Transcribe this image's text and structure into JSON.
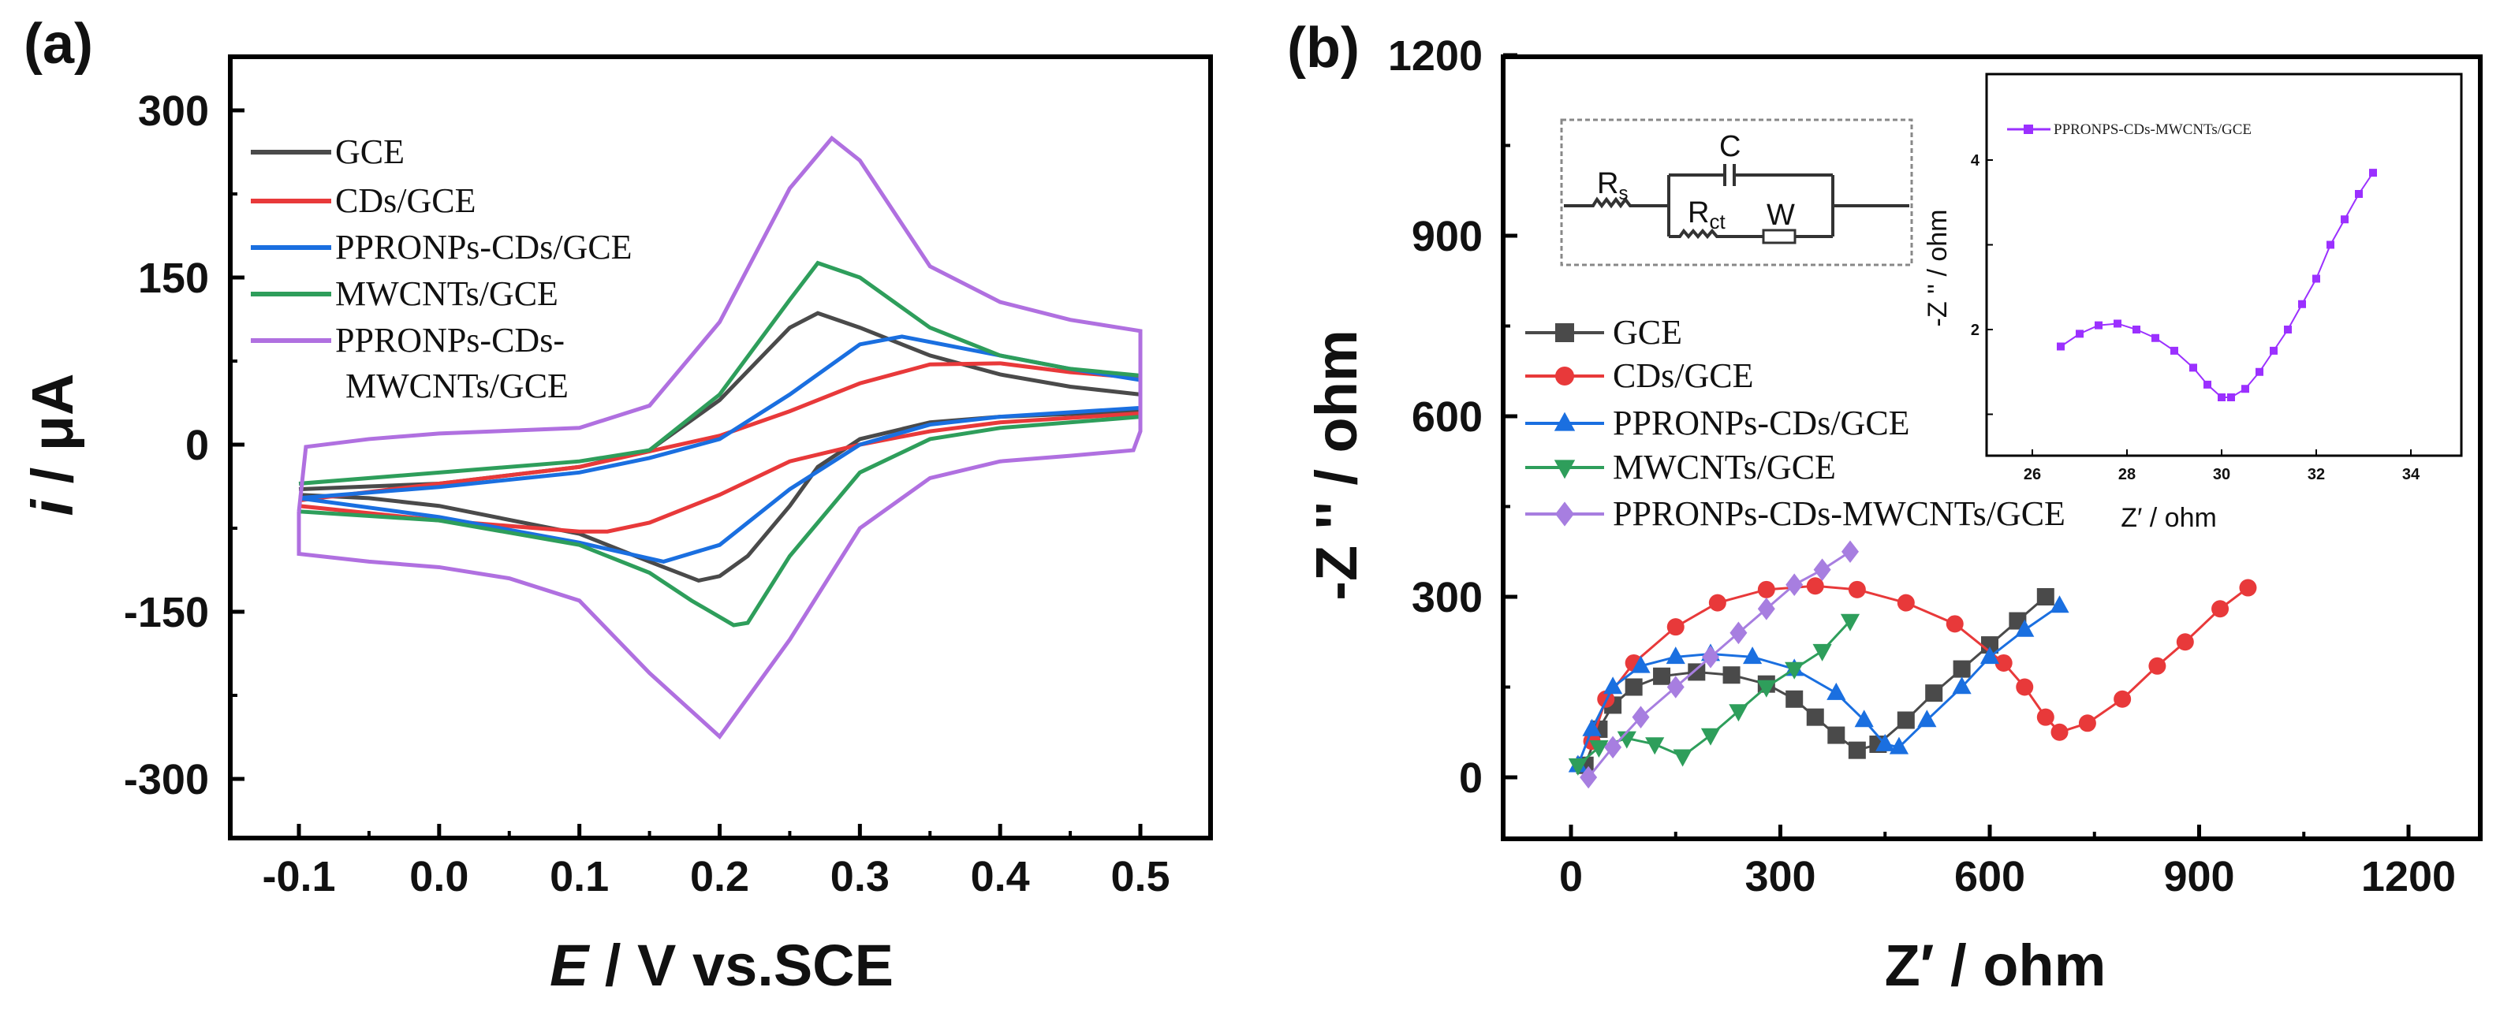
{
  "chart_data": [
    {
      "type": "line",
      "panel_label": "(a)",
      "title": "",
      "xlabel_var": "E",
      "xlabel_rest": " / V vs.SCE",
      "ylabel_var": "i",
      "ylabel_rest": " / μA",
      "xlim": [
        -0.15,
        0.55
      ],
      "ylim": [
        -350,
        350
      ],
      "xticks": [
        "-0.1",
        "0.0",
        "0.1",
        "0.2",
        "0.3",
        "0.4",
        "0.5"
      ],
      "xtick_values": [
        -0.1,
        0.0,
        0.1,
        0.2,
        0.3,
        0.4,
        0.5
      ],
      "yticks": [
        "300",
        "150",
        "0",
        "-150",
        "-300"
      ],
      "ytick_values": [
        300,
        150,
        0,
        -150,
        -300
      ],
      "legend_position": "top-left",
      "series": [
        {
          "name": "GCE",
          "color": "#4a4a4a",
          "points": [
            [
              -0.1,
              -40
            ],
            [
              0.0,
              -35
            ],
            [
              0.1,
              -20
            ],
            [
              0.15,
              -5
            ],
            [
              0.2,
              40
            ],
            [
              0.25,
              105
            ],
            [
              0.27,
              118
            ],
            [
              0.3,
              105
            ],
            [
              0.35,
              80
            ],
            [
              0.4,
              63
            ],
            [
              0.45,
              52
            ],
            [
              0.5,
              45
            ],
            [
              0.5,
              30
            ],
            [
              0.4,
              25
            ],
            [
              0.35,
              20
            ],
            [
              0.3,
              5
            ],
            [
              0.27,
              -20
            ],
            [
              0.25,
              -55
            ],
            [
              0.22,
              -100
            ],
            [
              0.2,
              -118
            ],
            [
              0.185,
              -122
            ],
            [
              0.15,
              -105
            ],
            [
              0.1,
              -80
            ],
            [
              0.0,
              -55
            ],
            [
              -0.05,
              -48
            ],
            [
              -0.1,
              -45
            ]
          ]
        },
        {
          "name": "CDs/GCE",
          "color": "#e8393a",
          "points": [
            [
              -0.1,
              -50
            ],
            [
              0.0,
              -35
            ],
            [
              0.1,
              -20
            ],
            [
              0.2,
              8
            ],
            [
              0.25,
              30
            ],
            [
              0.3,
              55
            ],
            [
              0.35,
              72
            ],
            [
              0.4,
              73
            ],
            [
              0.45,
              65
            ],
            [
              0.5,
              60
            ],
            [
              0.5,
              28
            ],
            [
              0.4,
              20
            ],
            [
              0.35,
              12
            ],
            [
              0.3,
              0
            ],
            [
              0.25,
              -15
            ],
            [
              0.2,
              -45
            ],
            [
              0.15,
              -70
            ],
            [
              0.12,
              -78
            ],
            [
              0.1,
              -78
            ],
            [
              0.0,
              -68
            ],
            [
              -0.1,
              -55
            ]
          ]
        },
        {
          "name": "PPRONPs-CDs/GCE",
          "color": "#1a6fe0",
          "points": [
            [
              -0.1,
              -48
            ],
            [
              0.0,
              -38
            ],
            [
              0.1,
              -25
            ],
            [
              0.15,
              -12
            ],
            [
              0.2,
              5
            ],
            [
              0.25,
              45
            ],
            [
              0.3,
              90
            ],
            [
              0.33,
              97
            ],
            [
              0.4,
              80
            ],
            [
              0.45,
              68
            ],
            [
              0.5,
              58
            ],
            [
              0.5,
              33
            ],
            [
              0.4,
              25
            ],
            [
              0.35,
              18
            ],
            [
              0.3,
              0
            ],
            [
              0.25,
              -40
            ],
            [
              0.2,
              -90
            ],
            [
              0.16,
              -105
            ],
            [
              0.1,
              -88
            ],
            [
              0.0,
              -65
            ],
            [
              -0.1,
              -48
            ]
          ]
        },
        {
          "name": "MWCNTs/GCE",
          "color": "#2e9e5b",
          "points": [
            [
              -0.1,
              -35
            ],
            [
              0.0,
              -25
            ],
            [
              0.1,
              -15
            ],
            [
              0.15,
              -5
            ],
            [
              0.2,
              45
            ],
            [
              0.25,
              130
            ],
            [
              0.27,
              163
            ],
            [
              0.3,
              150
            ],
            [
              0.35,
              105
            ],
            [
              0.4,
              80
            ],
            [
              0.45,
              68
            ],
            [
              0.5,
              62
            ],
            [
              0.5,
              25
            ],
            [
              0.4,
              15
            ],
            [
              0.35,
              5
            ],
            [
              0.3,
              -25
            ],
            [
              0.25,
              -100
            ],
            [
              0.22,
              -160
            ],
            [
              0.21,
              -162
            ],
            [
              0.18,
              -140
            ],
            [
              0.15,
              -115
            ],
            [
              0.1,
              -90
            ],
            [
              0.0,
              -68
            ],
            [
              -0.1,
              -60
            ]
          ]
        },
        {
          "name": "PPRONPs-CDs-",
          "name_line2": "MWCNTs/GCE",
          "color": "#b070e0",
          "points": [
            [
              -0.1,
              -60
            ],
            [
              -0.095,
              -2
            ],
            [
              -0.05,
              5
            ],
            [
              0.0,
              10
            ],
            [
              0.1,
              15
            ],
            [
              0.15,
              35
            ],
            [
              0.2,
              110
            ],
            [
              0.25,
              230
            ],
            [
              0.28,
              275
            ],
            [
              0.3,
              255
            ],
            [
              0.35,
              160
            ],
            [
              0.4,
              128
            ],
            [
              0.45,
              112
            ],
            [
              0.5,
              102
            ],
            [
              0.5,
              12
            ],
            [
              0.495,
              -5
            ],
            [
              0.45,
              -10
            ],
            [
              0.4,
              -15
            ],
            [
              0.35,
              -30
            ],
            [
              0.3,
              -75
            ],
            [
              0.25,
              -175
            ],
            [
              0.2,
              -262
            ],
            [
              0.15,
              -205
            ],
            [
              0.1,
              -140
            ],
            [
              0.05,
              -120
            ],
            [
              0.0,
              -110
            ],
            [
              -0.05,
              -105
            ],
            [
              -0.1,
              -98
            ],
            [
              -0.1,
              -60
            ]
          ]
        }
      ]
    },
    {
      "type": "scatter",
      "panel_label": "(b)",
      "xlabel": "Z′ / ohm",
      "ylabel": "-Z '' / ohm",
      "xlim": [
        -100,
        1300
      ],
      "ylim": [
        -100,
        1200
      ],
      "xticks": [
        "0",
        "300",
        "600",
        "900",
        "1200"
      ],
      "xtick_values": [
        0,
        300,
        600,
        900,
        1200
      ],
      "yticks": [
        "0",
        "300",
        "600",
        "900",
        "1200"
      ],
      "ytick_values": [
        0,
        300,
        600,
        900,
        1200
      ],
      "legend_position": "center-left",
      "series": [
        {
          "name": "GCE",
          "color": "#4a4a4a",
          "marker": "square",
          "points": [
            [
              20,
              20
            ],
            [
              40,
              80
            ],
            [
              60,
              120
            ],
            [
              90,
              150
            ],
            [
              130,
              168
            ],
            [
              180,
              175
            ],
            [
              230,
              170
            ],
            [
              280,
              155
            ],
            [
              320,
              130
            ],
            [
              350,
              100
            ],
            [
              380,
              70
            ],
            [
              410,
              45
            ],
            [
              440,
              55
            ],
            [
              480,
              95
            ],
            [
              520,
              140
            ],
            [
              560,
              180
            ],
            [
              600,
              220
            ],
            [
              640,
              260
            ],
            [
              680,
              300
            ]
          ]
        },
        {
          "name": "CDs/GCE",
          "color": "#e8393a",
          "marker": "circle",
          "points": [
            [
              30,
              60
            ],
            [
              50,
              130
            ],
            [
              90,
              190
            ],
            [
              150,
              250
            ],
            [
              210,
              290
            ],
            [
              280,
              312
            ],
            [
              350,
              318
            ],
            [
              410,
              312
            ],
            [
              480,
              290
            ],
            [
              550,
              255
            ],
            [
              620,
              190
            ],
            [
              650,
              150
            ],
            [
              680,
              100
            ],
            [
              700,
              75
            ],
            [
              740,
              90
            ],
            [
              790,
              130
            ],
            [
              840,
              185
            ],
            [
              880,
              225
            ],
            [
              930,
              280
            ],
            [
              970,
              315
            ]
          ]
        },
        {
          "name": "PPRONPs-CDs/GCE",
          "color": "#1a6fe0",
          "marker": "triangle-up",
          "points": [
            [
              10,
              20
            ],
            [
              30,
              80
            ],
            [
              60,
              150
            ],
            [
              100,
              185
            ],
            [
              150,
              200
            ],
            [
              200,
              205
            ],
            [
              260,
              200
            ],
            [
              320,
              180
            ],
            [
              380,
              140
            ],
            [
              420,
              95
            ],
            [
              450,
              55
            ],
            [
              470,
              50
            ],
            [
              510,
              95
            ],
            [
              560,
              150
            ],
            [
              600,
              200
            ],
            [
              650,
              245
            ],
            [
              700,
              285
            ]
          ]
        },
        {
          "name": "MWCNTs/GCE",
          "color": "#2e9e5b",
          "marker": "triangle-down",
          "points": [
            [
              10,
              20
            ],
            [
              40,
              50
            ],
            [
              80,
              65
            ],
            [
              120,
              55
            ],
            [
              160,
              35
            ],
            [
              200,
              70
            ],
            [
              240,
              110
            ],
            [
              280,
              150
            ],
            [
              320,
              180
            ],
            [
              360,
              210
            ],
            [
              400,
              260
            ]
          ]
        },
        {
          "name": "PPRONPs-CDs-MWCNTs/GCE",
          "color": "#a77ee0",
          "marker": "diamond",
          "points": [
            [
              25,
              0
            ],
            [
              60,
              50
            ],
            [
              100,
              100
            ],
            [
              150,
              150
            ],
            [
              200,
              200
            ],
            [
              240,
              240
            ],
            [
              280,
              280
            ],
            [
              320,
              320
            ],
            [
              360,
              345
            ],
            [
              400,
              375
            ]
          ]
        }
      ],
      "circuit": {
        "rs": "R",
        "rs_sub": "s",
        "c": "C",
        "rct": "R",
        "rct_sub": "ct",
        "w": "W"
      },
      "inset": {
        "type": "line",
        "xlabel": "Z′ / ohm",
        "ylabel": "-Z '' / ohm",
        "xlim": [
          25,
          35
        ],
        "ylim": [
          0.5,
          5
        ],
        "xticks": [
          "26",
          "28",
          "30",
          "32",
          "34"
        ],
        "xtick_values": [
          26,
          28,
          30,
          32,
          34
        ],
        "yticks": [
          "2",
          "4"
        ],
        "ytick_values": [
          2,
          4
        ],
        "series": [
          {
            "name": "PPRONPS-CDs-MWCNTs/GCE",
            "color": "#9b30ff",
            "marker": "square",
            "points": [
              [
                26.6,
                1.8
              ],
              [
                27,
                1.95
              ],
              [
                27.4,
                2.05
              ],
              [
                27.8,
                2.07
              ],
              [
                28.2,
                2.0
              ],
              [
                28.6,
                1.9
              ],
              [
                29,
                1.75
              ],
              [
                29.4,
                1.55
              ],
              [
                29.7,
                1.35
              ],
              [
                30,
                1.2
              ],
              [
                30.2,
                1.2
              ],
              [
                30.5,
                1.3
              ],
              [
                30.8,
                1.5
              ],
              [
                31.1,
                1.75
              ],
              [
                31.4,
                2.0
              ],
              [
                31.7,
                2.3
              ],
              [
                32,
                2.6
              ],
              [
                32.3,
                3.0
              ],
              [
                32.6,
                3.3
              ],
              [
                32.9,
                3.6
              ],
              [
                33.2,
                3.85
              ]
            ]
          }
        ]
      }
    }
  ]
}
